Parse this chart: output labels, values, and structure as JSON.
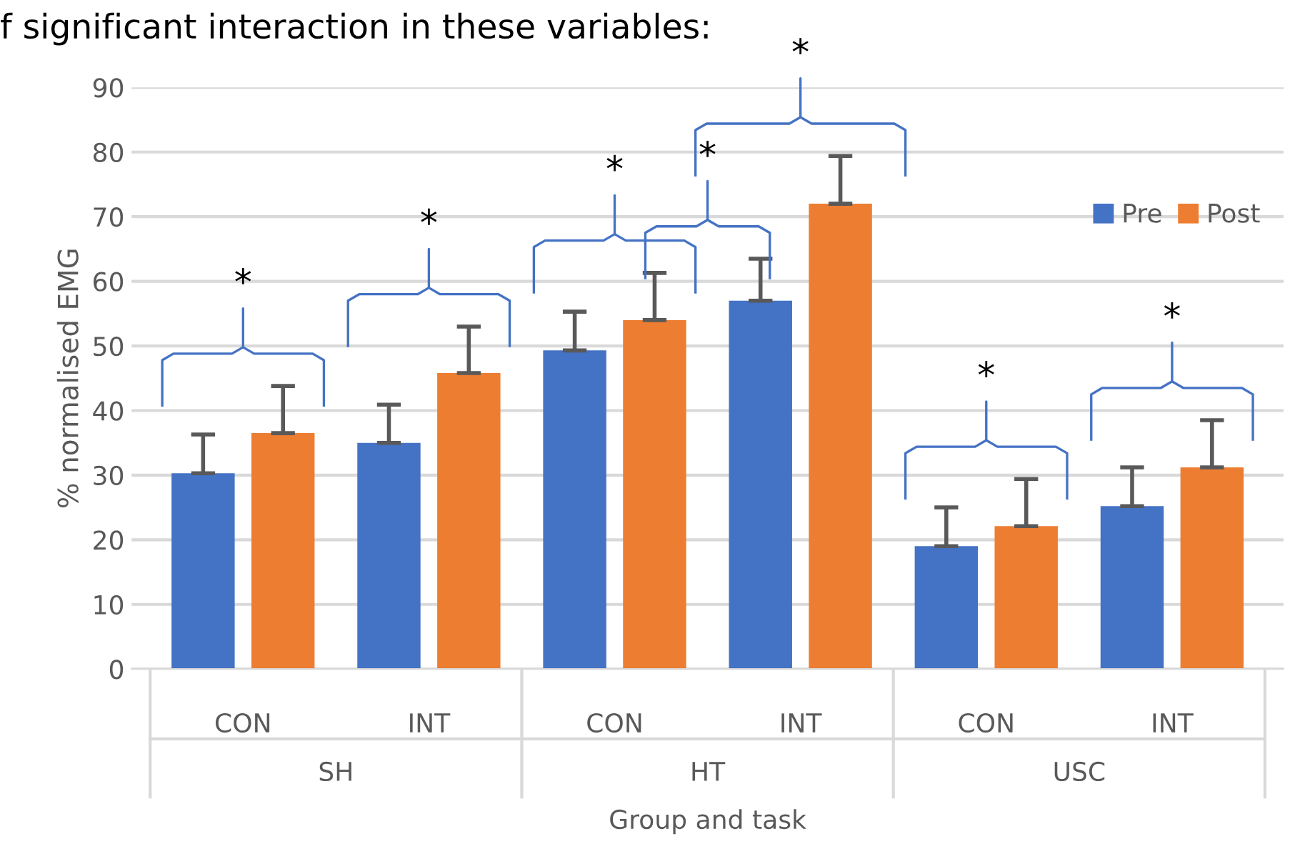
{
  "chart_data": {
    "type": "bar",
    "xlabel": "Group and task",
    "ylabel": "% normalised EMG",
    "categories": [
      "CON",
      "INT",
      "CON",
      "INT",
      "CON",
      "INT"
    ],
    "series": [
      {
        "name": "Pre",
        "color": "#4472c4",
        "values": [
          30.3,
          35,
          49.3,
          57,
          19,
          25.2
        ],
        "errors": [
          [
            30.3,
            36.3
          ],
          [
            35,
            40.9
          ],
          [
            49.3,
            55.3
          ],
          [
            57,
            63.5
          ],
          [
            19,
            25
          ],
          [
            25.2,
            31.2
          ]
        ]
      },
      {
        "name": "Post",
        "color": "#ed7d31",
        "values": [
          36.5,
          45.8,
          54,
          72,
          22.1,
          31.2
        ],
        "errors": [
          [
            36.5,
            43.8
          ],
          [
            45.8,
            53
          ],
          [
            54,
            61.3
          ],
          [
            72,
            79.4
          ],
          [
            22.1,
            29.4
          ],
          [
            31.2,
            38.5
          ]
        ]
      }
    ],
    "ylim": [
      0,
      90
    ],
    "yticks": [
      0,
      10,
      20,
      30,
      40,
      50,
      60,
      70,
      80,
      90
    ],
    "grid": "y",
    "legend": "right",
    "annotations": [
      "f significant interaction in these variables:",
      "SH",
      "HT",
      "USC",
      "*",
      "*",
      "*",
      "*",
      "*",
      "*",
      "*"
    ]
  }
}
